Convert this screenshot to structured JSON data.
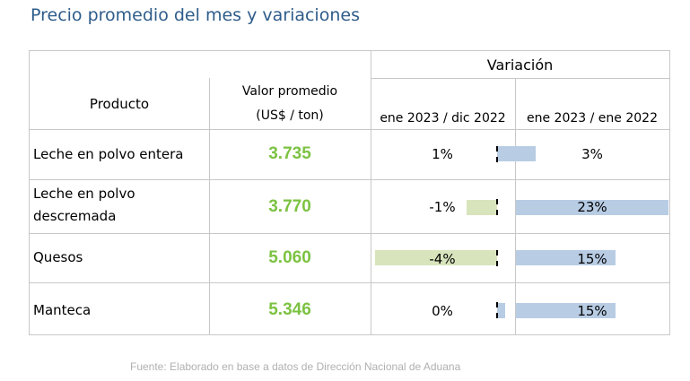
{
  "title": "Precio promedio del mes y variaciones",
  "header": {
    "variacion": "Variación",
    "producto": "Producto",
    "valor_line1": "Valor promedio",
    "valor_line2": "(US$ / ton)",
    "col_dic": "ene 2023 / dic 2022",
    "col_ene": "ene 2023 / ene 2022"
  },
  "rows": [
    {
      "product_line1": "Leche en polvo entera",
      "product_line2": "",
      "value": "3.735",
      "var_dic": "1%",
      "var_ene": "3%",
      "dic_pct": 1,
      "ene_pct": 3
    },
    {
      "product_line1": "Leche en polvo",
      "product_line2": "descremada",
      "value": "3.770",
      "var_dic": "-1%",
      "var_ene": "23%",
      "dic_pct": -1,
      "ene_pct": 23
    },
    {
      "product_line1": "Quesos",
      "product_line2": "",
      "value": "5.060",
      "var_dic": "-4%",
      "var_ene": "15%",
      "dic_pct": -4,
      "ene_pct": 15
    },
    {
      "product_line1": "Manteca",
      "product_line2": "",
      "value": "5.346",
      "var_dic": "0%",
      "var_ene": "15%",
      "dic_pct": 0,
      "ene_pct": 15
    }
  ],
  "colors": {
    "positive_bar": "#b8cce4",
    "negative_bar": "#d8e4bc",
    "value_text": "#7cc242",
    "title": "#2e5c8a"
  },
  "footer": "Fuente: Elaborado en base a datos de Dirección Nacional de Aduana"
}
